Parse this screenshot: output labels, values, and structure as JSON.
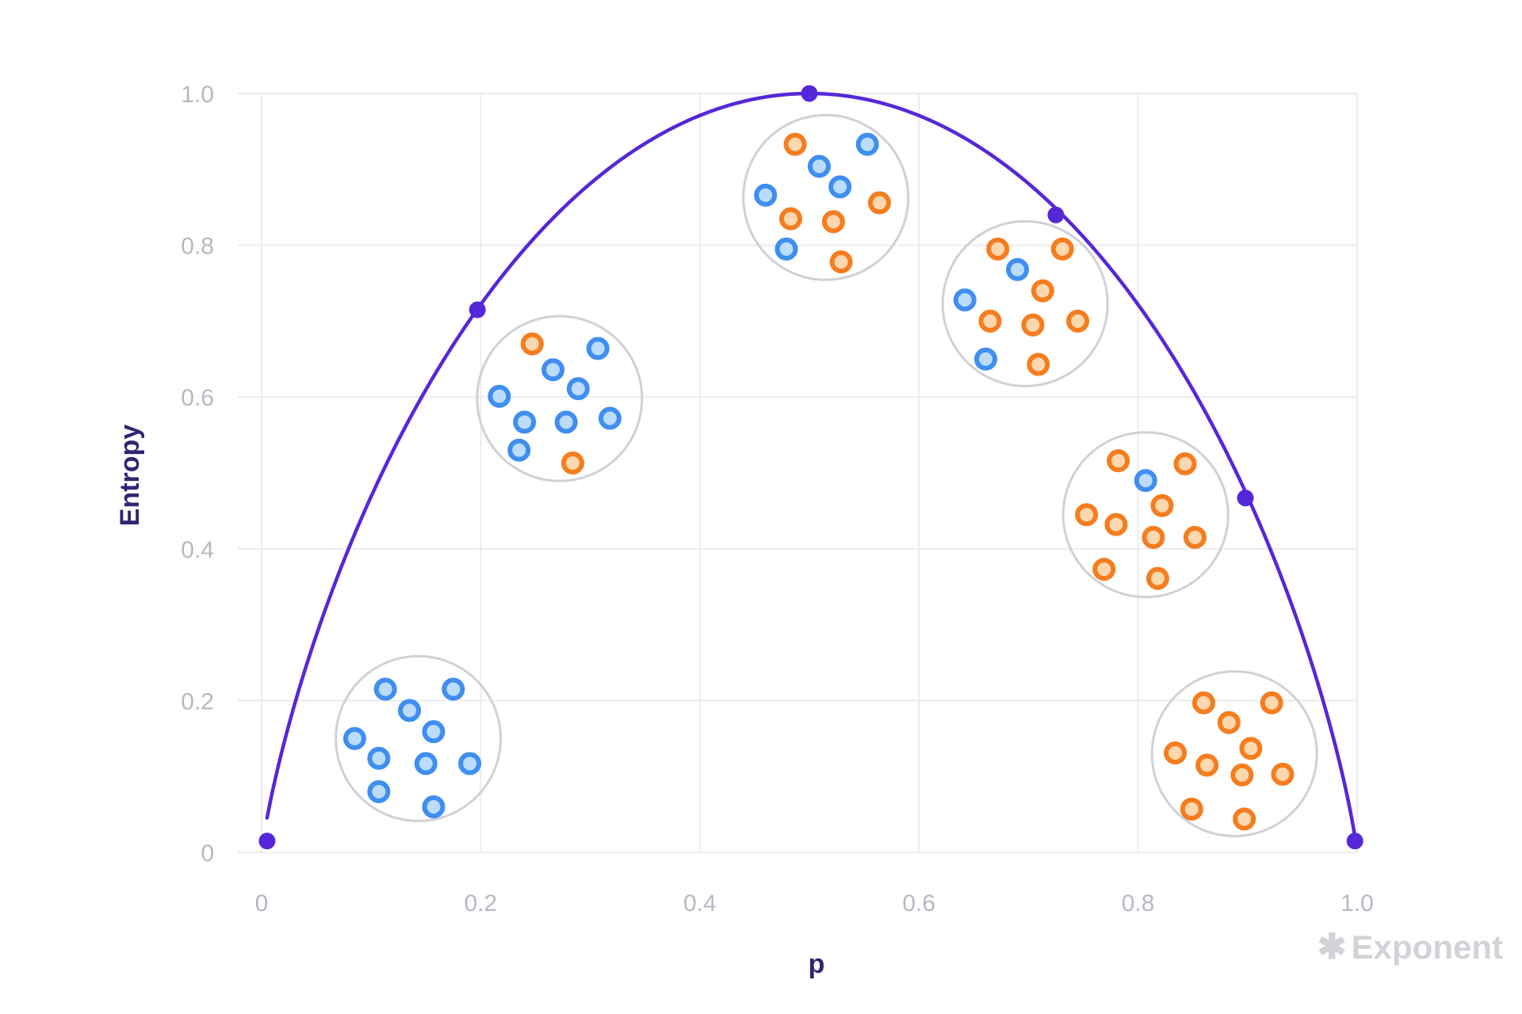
{
  "brand": {
    "name": "Exponent",
    "logo_icon": "asterisk-icon"
  },
  "colors": {
    "curve": "#5627d8",
    "grid": "#ececf0",
    "tick_text": "#b8b8c4",
    "axis_title": "#2e2670",
    "cluster_outline": "#d0d0d8",
    "blue_ring": "#3f8ef0",
    "blue_fill": "#bcdcfb",
    "orange_ring": "#f57d1f",
    "orange_fill": "#fdd7ad"
  },
  "chart_data": {
    "type": "line",
    "xlabel": "p",
    "ylabel": "Entropy",
    "xlim": [
      0,
      1
    ],
    "ylim": [
      0,
      1
    ],
    "grid": true,
    "x_ticks": [
      0,
      0.2,
      0.4,
      0.6,
      0.8,
      1.0
    ],
    "x_tick_labels": [
      "0",
      "0.2",
      "0.4",
      "0.6",
      "0.8",
      "1.0"
    ],
    "y_ticks": [
      0,
      0.2,
      0.4,
      0.6,
      0.8,
      1.0
    ],
    "y_tick_labels": [
      "0",
      "0.2",
      "0.4",
      "0.6",
      "0.8",
      "1.0"
    ],
    "series": [
      {
        "curve": "binary entropy H(p)",
        "points": [
          {
            "x": 0.005,
            "y": 0.015
          },
          {
            "x": 0.197,
            "y": 0.715
          },
          {
            "x": 0.5,
            "y": 1.0
          },
          {
            "x": 0.725,
            "y": 0.84
          },
          {
            "x": 0.898,
            "y": 0.467
          },
          {
            "x": 0.998,
            "y": 0.015
          }
        ]
      }
    ],
    "clusters": [
      {
        "center": {
          "x": 0.143,
          "y": 0.15
        },
        "dots": [
          {
            "x": 0.113,
            "y": 0.215,
            "c": "blue"
          },
          {
            "x": 0.175,
            "y": 0.215,
            "c": "blue"
          },
          {
            "x": 0.135,
            "y": 0.187,
            "c": "blue"
          },
          {
            "x": 0.157,
            "y": 0.159,
            "c": "blue"
          },
          {
            "x": 0.085,
            "y": 0.15,
            "c": "blue"
          },
          {
            "x": 0.107,
            "y": 0.124,
            "c": "blue"
          },
          {
            "x": 0.15,
            "y": 0.117,
            "c": "blue"
          },
          {
            "x": 0.19,
            "y": 0.117,
            "c": "blue"
          },
          {
            "x": 0.107,
            "y": 0.08,
            "c": "blue"
          },
          {
            "x": 0.157,
            "y": 0.06,
            "c": "blue"
          }
        ]
      },
      {
        "center": {
          "x": 0.272,
          "y": 0.598
        },
        "dots": [
          {
            "x": 0.247,
            "y": 0.67,
            "c": "orange"
          },
          {
            "x": 0.307,
            "y": 0.664,
            "c": "blue"
          },
          {
            "x": 0.266,
            "y": 0.636,
            "c": "blue"
          },
          {
            "x": 0.289,
            "y": 0.611,
            "c": "blue"
          },
          {
            "x": 0.217,
            "y": 0.601,
            "c": "blue"
          },
          {
            "x": 0.24,
            "y": 0.567,
            "c": "blue"
          },
          {
            "x": 0.278,
            "y": 0.567,
            "c": "blue"
          },
          {
            "x": 0.318,
            "y": 0.572,
            "c": "blue"
          },
          {
            "x": 0.235,
            "y": 0.53,
            "c": "blue"
          },
          {
            "x": 0.284,
            "y": 0.513,
            "c": "orange"
          }
        ]
      },
      {
        "center": {
          "x": 0.515,
          "y": 0.863
        },
        "dots": [
          {
            "x": 0.487,
            "y": 0.933,
            "c": "orange"
          },
          {
            "x": 0.553,
            "y": 0.933,
            "c": "blue"
          },
          {
            "x": 0.509,
            "y": 0.904,
            "c": "blue"
          },
          {
            "x": 0.528,
            "y": 0.877,
            "c": "blue"
          },
          {
            "x": 0.46,
            "y": 0.866,
            "c": "blue"
          },
          {
            "x": 0.564,
            "y": 0.856,
            "c": "orange"
          },
          {
            "x": 0.483,
            "y": 0.835,
            "c": "orange"
          },
          {
            "x": 0.522,
            "y": 0.831,
            "c": "orange"
          },
          {
            "x": 0.479,
            "y": 0.795,
            "c": "blue"
          },
          {
            "x": 0.529,
            "y": 0.778,
            "c": "orange"
          }
        ]
      },
      {
        "center": {
          "x": 0.697,
          "y": 0.723
        },
        "dots": [
          {
            "x": 0.672,
            "y": 0.795,
            "c": "orange"
          },
          {
            "x": 0.731,
            "y": 0.795,
            "c": "orange"
          },
          {
            "x": 0.69,
            "y": 0.768,
            "c": "blue"
          },
          {
            "x": 0.713,
            "y": 0.74,
            "c": "orange"
          },
          {
            "x": 0.642,
            "y": 0.728,
            "c": "blue"
          },
          {
            "x": 0.665,
            "y": 0.7,
            "c": "orange"
          },
          {
            "x": 0.704,
            "y": 0.695,
            "c": "orange"
          },
          {
            "x": 0.745,
            "y": 0.7,
            "c": "orange"
          },
          {
            "x": 0.661,
            "y": 0.65,
            "c": "blue"
          },
          {
            "x": 0.709,
            "y": 0.643,
            "c": "orange"
          }
        ]
      },
      {
        "center": {
          "x": 0.807,
          "y": 0.445
        },
        "dots": [
          {
            "x": 0.782,
            "y": 0.516,
            "c": "orange"
          },
          {
            "x": 0.843,
            "y": 0.512,
            "c": "orange"
          },
          {
            "x": 0.807,
            "y": 0.49,
            "c": "blue"
          },
          {
            "x": 0.822,
            "y": 0.457,
            "c": "orange"
          },
          {
            "x": 0.753,
            "y": 0.445,
            "c": "orange"
          },
          {
            "x": 0.78,
            "y": 0.432,
            "c": "orange"
          },
          {
            "x": 0.814,
            "y": 0.415,
            "c": "orange"
          },
          {
            "x": 0.852,
            "y": 0.415,
            "c": "orange"
          },
          {
            "x": 0.769,
            "y": 0.373,
            "c": "orange"
          },
          {
            "x": 0.818,
            "y": 0.361,
            "c": "orange"
          }
        ]
      },
      {
        "center": {
          "x": 0.888,
          "y": 0.13
        },
        "dots": [
          {
            "x": 0.86,
            "y": 0.197,
            "c": "orange"
          },
          {
            "x": 0.922,
            "y": 0.197,
            "c": "orange"
          },
          {
            "x": 0.883,
            "y": 0.171,
            "c": "orange"
          },
          {
            "x": 0.903,
            "y": 0.137,
            "c": "orange"
          },
          {
            "x": 0.834,
            "y": 0.131,
            "c": "orange"
          },
          {
            "x": 0.863,
            "y": 0.115,
            "c": "orange"
          },
          {
            "x": 0.895,
            "y": 0.102,
            "c": "orange"
          },
          {
            "x": 0.932,
            "y": 0.103,
            "c": "orange"
          },
          {
            "x": 0.849,
            "y": 0.057,
            "c": "orange"
          },
          {
            "x": 0.897,
            "y": 0.044,
            "c": "orange"
          }
        ]
      }
    ]
  }
}
